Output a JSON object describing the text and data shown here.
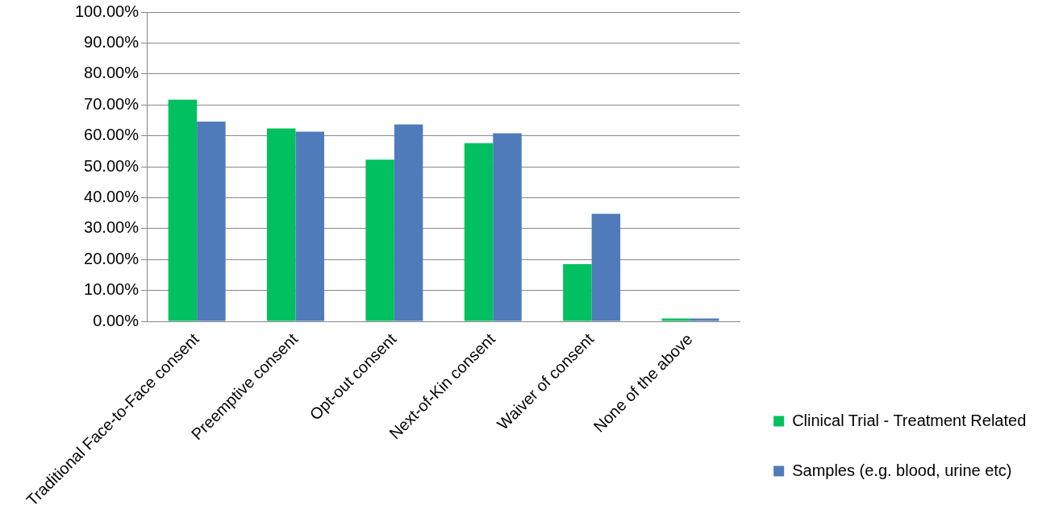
{
  "chart_data": {
    "type": "bar",
    "categories": [
      "Traditional Face-to-Face consent",
      "Preemptive consent",
      "Opt-out consent",
      "Next-of-Kin consent",
      "Waiver of consent",
      "None of the above"
    ],
    "series": [
      {
        "name": "Clinical Trial - Treatment Related",
        "color": "#00c060",
        "values": [
          71.7,
          62.4,
          52.3,
          57.6,
          18.5,
          0.9
        ]
      },
      {
        "name": "Samples (e.g. blood, urine etc)",
        "color": "#4f7bba",
        "values": [
          64.6,
          61.3,
          63.7,
          60.8,
          34.8,
          0.9
        ]
      }
    ],
    "ylim": [
      0,
      100
    ],
    "yticks": [
      {
        "value": 0,
        "label": "0.00%"
      },
      {
        "value": 10,
        "label": "10.00%"
      },
      {
        "value": 20,
        "label": "20.00%"
      },
      {
        "value": 30,
        "label": "30.00%"
      },
      {
        "value": 40,
        "label": "40.00%"
      },
      {
        "value": 50,
        "label": "50.00%"
      },
      {
        "value": 60,
        "label": "60.00%"
      },
      {
        "value": 70,
        "label": "70.00%"
      },
      {
        "value": 80,
        "label": "80.00%"
      },
      {
        "value": 90,
        "label": "90.00%"
      },
      {
        "value": 100,
        "label": "100.00%"
      }
    ],
    "grid": "y",
    "legend": "right"
  }
}
